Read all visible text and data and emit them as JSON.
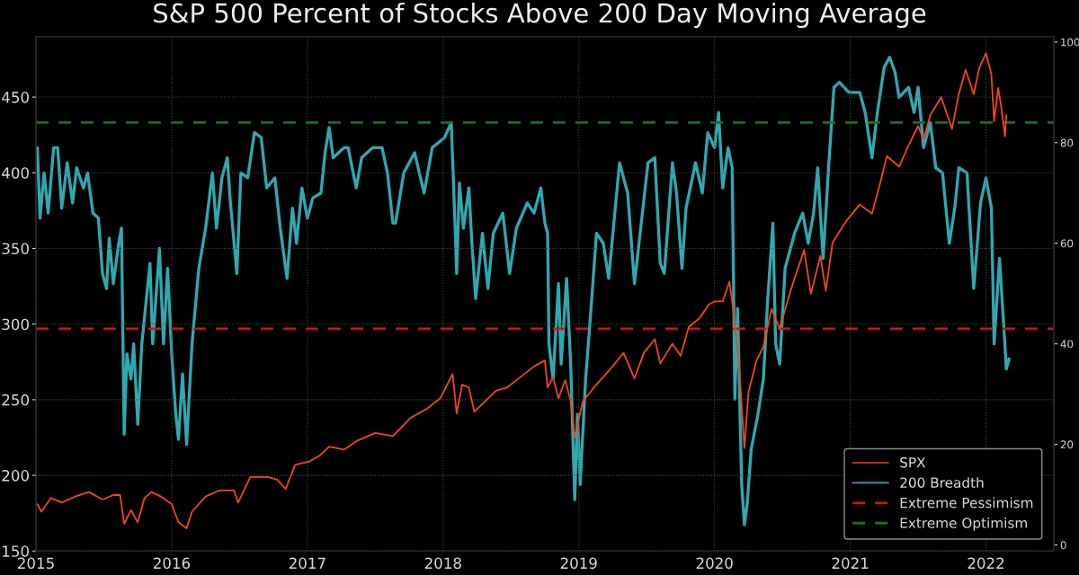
{
  "chart_data": {
    "type": "line",
    "title": "S&P 500 Percent of Stocks Above 200 Day Moving Average",
    "series": [
      {
        "name": "SPX",
        "color": "#f2461c",
        "x": [
          2015.01,
          2015.04,
          2015.11,
          2015.19,
          2015.29,
          2015.39,
          2015.49,
          2015.57,
          2015.62,
          2015.65,
          2015.7,
          2015.75,
          2015.8,
          2015.85,
          2015.92,
          2016.0,
          2016.05,
          2016.11,
          2016.15,
          2016.25,
          2016.35,
          2016.46,
          2016.49,
          2016.58,
          2016.71,
          2016.78,
          2016.84,
          2016.91,
          2017.01,
          2017.09,
          2017.16,
          2017.27,
          2017.37,
          2017.5,
          2017.63,
          2017.76,
          2017.88,
          2017.98,
          2018.07,
          2018.1,
          2018.14,
          2018.19,
          2018.23,
          2018.31,
          2018.39,
          2018.47,
          2018.57,
          2018.67,
          2018.75,
          2018.77,
          2018.81,
          2018.85,
          2018.9,
          2018.94,
          2018.97,
          2019.03,
          2019.13,
          2019.23,
          2019.33,
          2019.41,
          2019.48,
          2019.56,
          2019.6,
          2019.69,
          2019.75,
          2019.81,
          2019.89,
          2019.96,
          2020.0,
          2020.06,
          2020.11,
          2020.14,
          2020.18,
          2020.22,
          2020.25,
          2020.31,
          2020.36,
          2020.42,
          2020.48,
          2020.56,
          2020.66,
          2020.71,
          2020.78,
          2020.82,
          2020.87,
          2020.97,
          2021.07,
          2021.16,
          2021.22,
          2021.27,
          2021.36,
          2021.43,
          2021.5,
          2021.54,
          2021.59,
          2021.67,
          2021.75,
          2021.8,
          2021.85,
          2021.91,
          2021.95,
          2022.0,
          2022.04,
          2022.06,
          2022.09,
          2022.11,
          2022.14,
          2022.15
        ],
        "values": [
          181,
          176,
          185,
          182,
          186,
          189,
          184,
          187,
          187,
          168,
          177,
          169,
          185,
          189,
          186,
          181,
          169,
          165,
          176,
          186,
          190,
          190,
          182,
          199,
          199,
          197,
          191,
          207,
          209,
          213,
          219,
          217,
          223,
          228,
          226,
          238,
          244,
          251,
          267,
          241,
          260,
          258,
          242,
          249,
          256,
          258,
          265,
          272,
          276,
          258,
          265,
          251,
          263,
          249,
          225,
          249,
          260,
          270,
          281,
          264,
          281,
          290,
          274,
          287,
          279,
          298,
          304,
          313,
          315,
          315,
          328,
          308,
          274,
          218,
          255,
          276,
          285,
          310,
          297,
          322,
          349,
          320,
          345,
          322,
          354,
          368,
          379,
          373,
          393,
          411,
          404,
          418,
          431,
          422,
          438,
          450,
          429,
          452,
          468,
          452,
          469,
          479,
          465,
          434,
          456,
          445,
          424,
          438
        ]
      },
      {
        "name": "200 Breadth",
        "color": "#2fa8b0",
        "axis": "y2",
        "x": [
          2015.01,
          2015.03,
          2015.06,
          2015.09,
          2015.13,
          2015.16,
          2015.19,
          2015.23,
          2015.27,
          2015.3,
          2015.35,
          2015.38,
          2015.42,
          2015.46,
          2015.49,
          2015.52,
          2015.54,
          2015.57,
          2015.61,
          2015.63,
          2015.65,
          2015.67,
          2015.7,
          2015.72,
          2015.75,
          2015.78,
          2015.84,
          2015.86,
          2015.91,
          2015.94,
          2015.97,
          2016.0,
          2016.03,
          2016.05,
          2016.08,
          2016.11,
          2016.15,
          2016.2,
          2016.25,
          2016.3,
          2016.33,
          2016.37,
          2016.41,
          2016.43,
          2016.48,
          2016.51,
          2016.56,
          2016.61,
          2016.66,
          2016.7,
          2016.76,
          2016.8,
          2016.85,
          2016.89,
          2016.92,
          2016.96,
          2017.0,
          2017.04,
          2017.1,
          2017.13,
          2017.16,
          2017.19,
          2017.27,
          2017.3,
          2017.36,
          2017.4,
          2017.48,
          2017.55,
          2017.59,
          2017.63,
          2017.65,
          2017.71,
          2017.79,
          2017.86,
          2017.92,
          2018.01,
          2018.06,
          2018.09,
          2018.1,
          2018.12,
          2018.15,
          2018.19,
          2018.21,
          2018.24,
          2018.29,
          2018.33,
          2018.37,
          2018.44,
          2018.49,
          2018.54,
          2018.62,
          2018.67,
          2018.72,
          2018.75,
          2018.77,
          2018.78,
          2018.81,
          2018.85,
          2018.87,
          2018.91,
          2018.94,
          2018.97,
          2018.99,
          2019.01,
          2019.05,
          2019.09,
          2019.13,
          2019.18,
          2019.22,
          2019.3,
          2019.36,
          2019.41,
          2019.46,
          2019.51,
          2019.56,
          2019.6,
          2019.63,
          2019.69,
          2019.72,
          2019.76,
          2019.79,
          2019.86,
          2019.91,
          2019.95,
          2020.0,
          2020.03,
          2020.06,
          2020.1,
          2020.13,
          2020.15,
          2020.17,
          2020.2,
          2020.22,
          2020.24,
          2020.27,
          2020.32,
          2020.36,
          2020.39,
          2020.43,
          2020.45,
          2020.48,
          2020.52,
          2020.59,
          2020.65,
          2020.69,
          2020.73,
          2020.76,
          2020.8,
          2020.84,
          2020.88,
          2020.92,
          2020.99,
          2021.07,
          2021.11,
          2021.16,
          2021.2,
          2021.25,
          2021.29,
          2021.33,
          2021.36,
          2021.43,
          2021.47,
          2021.5,
          2021.54,
          2021.59,
          2021.63,
          2021.68,
          2021.73,
          2021.77,
          2021.8,
          2021.86,
          2021.91,
          2021.96,
          2022.0,
          2022.04,
          2022.06,
          2022.1,
          2022.13,
          2022.15,
          2022.17
        ],
        "values": [
          79,
          65,
          74,
          66,
          79,
          79,
          67,
          76,
          68,
          75,
          71,
          74,
          66,
          65,
          54,
          51,
          61,
          52,
          60,
          63,
          22,
          38,
          33,
          40,
          24,
          40,
          56,
          40,
          59,
          40,
          55,
          38,
          26,
          21,
          34,
          20,
          40,
          55,
          63,
          74,
          63,
          73,
          77,
          69,
          54,
          74,
          73,
          82,
          81,
          71,
          73,
          63,
          53,
          67,
          60,
          71,
          65,
          69,
          70,
          78,
          83,
          77,
          79,
          79,
          71,
          77,
          79,
          79,
          74,
          64,
          64,
          74,
          78,
          70,
          79,
          81,
          84,
          62,
          54,
          72,
          63,
          71,
          61,
          49,
          62,
          51,
          62,
          66,
          54,
          63,
          68,
          66,
          71,
          64,
          62,
          40,
          33,
          52,
          36,
          53,
          36,
          9,
          26,
          12,
          33,
          47,
          62,
          60,
          53,
          76,
          70,
          52,
          64,
          76,
          77,
          56,
          54,
          76,
          70,
          55,
          67,
          76,
          70,
          82,
          79,
          86,
          71,
          79,
          75,
          29,
          47,
          12,
          4,
          8,
          19,
          26,
          33,
          48,
          64,
          40,
          36,
          55,
          62,
          66,
          60,
          66,
          75,
          57,
          75,
          91,
          92,
          90,
          90,
          86,
          77,
          86,
          95,
          97,
          94,
          89,
          91,
          86,
          91,
          79,
          84,
          75,
          74,
          60,
          67,
          75,
          74,
          51,
          68,
          73,
          67,
          40,
          57,
          44,
          35,
          37
        ]
      }
    ],
    "xlim": [
      2015,
      2022.5
    ],
    "xticks": [
      2015,
      2016,
      2017,
      2018,
      2019,
      2020,
      2021,
      2022
    ],
    "ylim": [
      150,
      490
    ],
    "yticks": [
      150,
      200,
      250,
      300,
      350,
      400,
      450
    ],
    "y2lim": [
      -1.2,
      101.1
    ],
    "y2ticks": [
      0,
      20,
      40,
      60,
      80,
      100
    ],
    "ref_lines": [
      {
        "axis": "y2",
        "value": 43,
        "label": "Extreme Pessimism",
        "color": "#c8141c",
        "line_style": "dashed"
      },
      {
        "axis": "y2",
        "value": 84,
        "label": "Extreme Optimism",
        "color": "#1f6e1f",
        "line_style": "dashed"
      }
    ],
    "line_style": "solid",
    "grid": true,
    "legend": "bottom right"
  }
}
